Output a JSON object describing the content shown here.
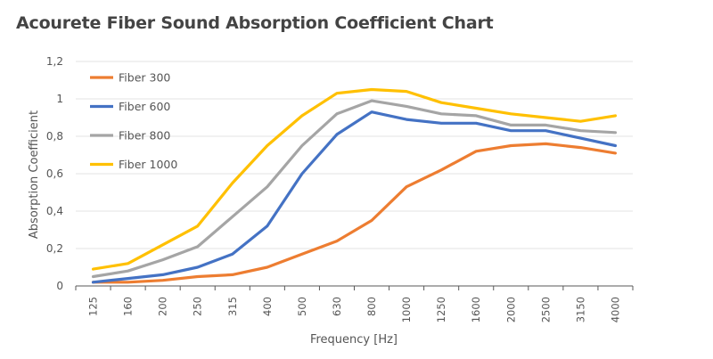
{
  "chart_data": {
    "type": "line",
    "title": "Acourete Fiber Sound Absorption Coefficient Chart",
    "xlabel": "Frequency [Hz]",
    "ylabel": "Absorption Coefficient",
    "categories": [
      "125",
      "160",
      "200",
      "250",
      "315",
      "400",
      "500",
      "630",
      "800",
      "1000",
      "1250",
      "1600",
      "2000",
      "2500",
      "3150",
      "4000"
    ],
    "ylim": [
      0,
      1.2
    ],
    "yticks": [
      "0",
      "0,2",
      "0,4",
      "0,6",
      "0,8",
      "1",
      "1,2"
    ],
    "grid": true,
    "legend": "top-left",
    "series": [
      {
        "name": "Fiber 300",
        "color": "#ED7D31",
        "values": [
          0.02,
          0.02,
          0.03,
          0.05,
          0.06,
          0.1,
          0.17,
          0.24,
          0.35,
          0.53,
          0.62,
          0.72,
          0.75,
          0.76,
          0.74,
          0.71
        ]
      },
      {
        "name": "Fiber 600",
        "color": "#4472C4",
        "values": [
          0.02,
          0.04,
          0.06,
          0.1,
          0.17,
          0.32,
          0.6,
          0.81,
          0.93,
          0.89,
          0.87,
          0.87,
          0.83,
          0.83,
          0.79,
          0.75
        ]
      },
      {
        "name": "Fiber 800",
        "color": "#A5A5A5",
        "values": [
          0.05,
          0.08,
          0.14,
          0.21,
          0.37,
          0.53,
          0.75,
          0.92,
          0.99,
          0.96,
          0.92,
          0.91,
          0.86,
          0.86,
          0.83,
          0.82
        ]
      },
      {
        "name": "Fiber 1000",
        "color": "#FFC000",
        "values": [
          0.09,
          0.12,
          0.22,
          0.32,
          0.55,
          0.75,
          0.91,
          1.03,
          1.05,
          1.04,
          0.98,
          0.95,
          0.92,
          0.9,
          0.88,
          0.91
        ]
      }
    ]
  }
}
